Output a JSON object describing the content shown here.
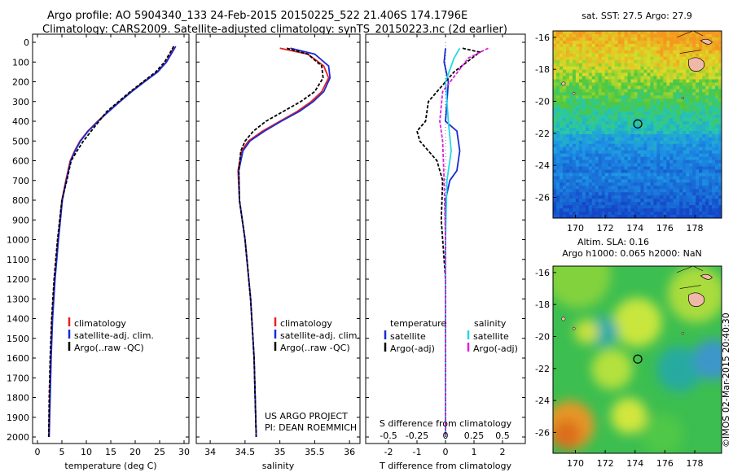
{
  "header": {
    "line1": "Argo profile: AO 5904340_133 24-Feb-2015 20150225_522 21.406S 174.1796E",
    "line2": "Climatology: CARS2009. Satellite-adjusted climatology: synTS_20150223.nc (2d earlier)"
  },
  "colors": {
    "climatology": "#e8201e",
    "satellite": "#1a2bd6",
    "argo": "#000000",
    "satellite_s": "#26d8e8",
    "argo_s": "#e020e0"
  },
  "credit": "©IMOS 02-Mar-2015 20:40:30",
  "project_note": [
    "US ARGO PROJECT",
    "PI: DEAN ROEMMICH"
  ],
  "chart_data": [
    {
      "type": "line",
      "xlabel": "temperature (deg C)",
      "ylabel": "",
      "xlim": [
        -1,
        31
      ],
      "ylim": [
        2050,
        0
      ],
      "xticks": [
        0,
        5,
        10,
        15,
        20,
        25,
        30
      ],
      "yticks": [
        0,
        100,
        200,
        300,
        400,
        500,
        600,
        700,
        800,
        900,
        1000,
        1100,
        1200,
        1300,
        1400,
        1500,
        1600,
        1700,
        1800,
        1900,
        2000
      ],
      "legend": [
        "climatology",
        "satellite-adj. clim.",
        "Argo(..raw -QC)"
      ],
      "series": [
        {
          "name": "climatology",
          "x": [
            27.8,
            27.5,
            26.3,
            24.5,
            21.8,
            19.2,
            16.8,
            14.5,
            12.3,
            10.3,
            8.7,
            7.6,
            6.7,
            5.8,
            5.0,
            4.2,
            3.5,
            3.0,
            2.7,
            2.5,
            2.3
          ],
          "y": [
            20,
            50,
            100,
            150,
            200,
            250,
            300,
            350,
            400,
            450,
            500,
            550,
            600,
            700,
            800,
            1000,
            1200,
            1400,
            1600,
            1800,
            2000
          ]
        },
        {
          "name": "satellite-adj. clim.",
          "x": [
            28.3,
            27.6,
            26.4,
            24.6,
            21.9,
            19.3,
            16.9,
            14.6,
            12.4,
            10.4,
            8.8,
            7.7,
            6.8,
            5.9,
            5.1,
            4.3,
            3.6,
            3.1,
            2.8,
            2.6,
            2.4
          ],
          "y": [
            20,
            50,
            100,
            150,
            200,
            250,
            300,
            350,
            400,
            450,
            500,
            550,
            600,
            700,
            800,
            1000,
            1200,
            1400,
            1600,
            1800,
            2000
          ]
        },
        {
          "name": "Argo(..raw -QC)",
          "x": [
            27.9,
            27.2,
            26.0,
            24.2,
            21.6,
            19.0,
            16.6,
            14.2,
            12.6,
            11.0,
            9.4,
            8.1,
            6.9,
            6.0,
            5.0,
            4.1,
            3.4,
            2.9,
            2.6,
            2.4,
            2.3
          ],
          "y": [
            20,
            50,
            100,
            150,
            200,
            250,
            300,
            350,
            400,
            450,
            500,
            550,
            600,
            700,
            800,
            1000,
            1200,
            1400,
            1600,
            1800,
            2000
          ]
        }
      ]
    },
    {
      "type": "line",
      "xlabel": "salinity",
      "ylabel": "",
      "xlim": [
        33.8,
        36.15
      ],
      "ylim": [
        2050,
        0
      ],
      "xticks": [
        34,
        34.5,
        35,
        35.5,
        36
      ],
      "legend": [
        "climatology",
        "satellite-adj. clim.",
        "Argo(..raw -QC)"
      ],
      "series": [
        {
          "name": "climatology",
          "x": [
            35.0,
            35.4,
            35.63,
            35.7,
            35.6,
            35.45,
            35.25,
            35.0,
            34.75,
            34.55,
            34.45,
            34.4,
            34.42,
            34.5,
            34.58,
            34.63,
            34.66
          ],
          "y": [
            30,
            60,
            120,
            180,
            250,
            300,
            350,
            400,
            450,
            500,
            550,
            650,
            800,
            1000,
            1300,
            1600,
            2000
          ]
        },
        {
          "name": "satellite-adj. clim.",
          "x": [
            35.15,
            35.5,
            35.7,
            35.72,
            35.63,
            35.48,
            35.28,
            35.02,
            34.78,
            34.57,
            34.47,
            34.41,
            34.42,
            34.5,
            34.58,
            34.63,
            34.66
          ],
          "y": [
            30,
            60,
            120,
            180,
            250,
            300,
            350,
            400,
            450,
            500,
            550,
            650,
            800,
            1000,
            1300,
            1600,
            2000
          ]
        },
        {
          "name": "Argo(..raw -QC)",
          "x": [
            35.1,
            35.4,
            35.6,
            35.62,
            35.5,
            35.3,
            35.05,
            34.8,
            34.62,
            34.5,
            34.44,
            34.41,
            34.42,
            34.5,
            34.58,
            34.63,
            34.66
          ],
          "y": [
            30,
            60,
            120,
            180,
            250,
            300,
            350,
            400,
            450,
            500,
            550,
            650,
            800,
            1000,
            1300,
            1600,
            2000
          ]
        }
      ]
    },
    {
      "type": "line",
      "xlabel": "T difference from climatology",
      "xlabel_top": "S difference from climatology",
      "ylabel": "",
      "xlim": [
        -2.8,
        2.8
      ],
      "ylim": [
        2050,
        0
      ],
      "xticks": [
        -2,
        -1,
        0,
        1,
        2
      ],
      "xticks_s": [
        "-0.5",
        "-0.25",
        "0",
        "0.25",
        "0.5"
      ],
      "xticks_s_pos": [
        -2,
        -1,
        0,
        1,
        2
      ],
      "legend_title_t": "temperature",
      "legend_title_s": "salinity",
      "legend": [
        "satellite",
        "Argo(-adj)",
        "satellite",
        "Argo(-adj)"
      ],
      "series": [
        {
          "name": "satellite",
          "group": "temperature",
          "x": [
            0.0,
            -0.05,
            0.1,
            0.05,
            0.0,
            0.4,
            0.5,
            0.4,
            0.15,
            0.0,
            0.0,
            0.0
          ],
          "y": [
            30,
            100,
            200,
            300,
            400,
            450,
            550,
            650,
            700,
            800,
            1000,
            2000
          ]
        },
        {
          "name": "Argo(-adj)",
          "group": "temperature",
          "x": [
            0.6,
            1.2,
            0.3,
            -0.6,
            -0.7,
            -1.0,
            -0.9,
            -0.3,
            -0.1,
            -0.15,
            0.0,
            0.0
          ],
          "y": [
            30,
            50,
            150,
            300,
            400,
            450,
            500,
            600,
            700,
            900,
            1200,
            2000
          ]
        },
        {
          "name": "satellite",
          "group": "salinity",
          "x": [
            0.5,
            0.3,
            0.0,
            0.1,
            0.2,
            0.05,
            0.0,
            0.0
          ],
          "y": [
            30,
            80,
            200,
            400,
            550,
            700,
            1000,
            2000
          ]
        },
        {
          "name": "Argo(-adj)",
          "group": "salinity",
          "x": [
            1.5,
            0.8,
            -0.1,
            -0.2,
            -0.1,
            -0.05,
            0.0,
            0.0
          ],
          "y": [
            30,
            80,
            250,
            400,
            500,
            700,
            1000,
            2000
          ]
        }
      ]
    },
    {
      "type": "heatmap",
      "title": "sat. SST: 27.5 Argo: 27.9",
      "xlim": [
        168.5,
        179.8
      ],
      "ylim": [
        -27.3,
        -15.6
      ],
      "xticks": [
        170,
        172,
        174,
        176,
        178
      ],
      "yticks": [
        -16,
        -18,
        -20,
        -22,
        -24,
        -26
      ],
      "argo_lon": 174.18,
      "argo_lat": -21.41
    },
    {
      "type": "heatmap",
      "title": "Altim. SLA: 0.16",
      "subtitle": "Argo h1000: 0.065 h2000: NaN",
      "xlim": [
        168.5,
        179.8
      ],
      "ylim": [
        -27.3,
        -15.6
      ],
      "xticks": [
        170,
        172,
        174,
        176,
        178
      ],
      "yticks": [
        -16,
        -18,
        -20,
        -22,
        -24,
        -26
      ],
      "argo_lon": 174.18,
      "argo_lat": -21.41
    }
  ]
}
